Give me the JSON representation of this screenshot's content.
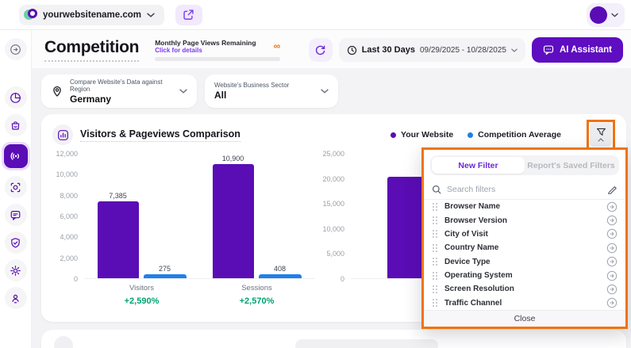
{
  "topbar": {
    "site_name": "yourwebsitename.com"
  },
  "header": {
    "title": "Competition",
    "pageviews": {
      "label": "Monthly Page Views Remaining",
      "link": "Click for details",
      "remaining_symbol": "∞"
    },
    "date_range": {
      "label": "Last 30 Days",
      "value": "09/29/2025 - 10/28/2025"
    },
    "ai_assistant_label": "AI Assistant"
  },
  "filters": {
    "region": {
      "label": "Compare Website's Data against Region",
      "value": "Germany"
    },
    "sector": {
      "label": "Website's Business Sector",
      "value": "All"
    }
  },
  "comparison_card": {
    "title": "Visitors & Pageviews Comparison",
    "legend": [
      {
        "label": "Your Website",
        "color": "#5A0CB5"
      },
      {
        "label": "Competition Average",
        "color": "#1F80E8"
      }
    ]
  },
  "chart_data": [
    {
      "type": "bar",
      "title": "Visitors & Pageviews Comparison — left panel",
      "categories": [
        "Visitors",
        "Sessions"
      ],
      "series": [
        {
          "name": "Your Website",
          "color": "#5A0CB5",
          "values": [
            7385,
            10900
          ],
          "labels": [
            "7,385",
            "10,900"
          ]
        },
        {
          "name": "Competition Average",
          "color": "#1F80E8",
          "values": [
            275,
            408
          ],
          "labels": [
            "275",
            "408"
          ]
        }
      ],
      "change_labels": [
        "+2,590%",
        "+2,570%"
      ],
      "ylim": [
        0,
        12000
      ],
      "yticks": [
        "12,000",
        "10,000",
        "8,000",
        "6,000",
        "4,000",
        "2,000",
        "0"
      ],
      "grid": false,
      "legend_position": "top-right"
    },
    {
      "type": "bar",
      "title": "Visitors & Pageviews Comparison — right panel (partially covered by filter overlay)",
      "categories": [
        ""
      ],
      "series": [
        {
          "name": "Your Website",
          "color": "#5A0CB5",
          "values": [
            20200
          ],
          "labels": [
            ""
          ]
        }
      ],
      "ylim": [
        0,
        25000
      ],
      "yticks": [
        "25,000",
        "20,000",
        "15,000",
        "10,000",
        "5,000",
        "0"
      ],
      "grid": false
    }
  ],
  "filter_panel": {
    "tabs": [
      {
        "label": "New Filter",
        "active": true
      },
      {
        "label": "Report's Saved Filters",
        "active": false
      }
    ],
    "search_placeholder": "Search filters",
    "items": [
      "Browser Name",
      "Browser Version",
      "City of Visit",
      "Country Name",
      "Device Type",
      "Operating System",
      "Screen Resolution",
      "Traffic Channel"
    ],
    "close_label": "Close"
  },
  "colors": {
    "accent_purple": "#5A0CB5",
    "button_purple": "#5E0DC0",
    "accent_blue": "#1F80E8",
    "positive_green": "#00A36F",
    "highlight_orange": "#F0730F",
    "link_purple": "#7C3AED"
  }
}
